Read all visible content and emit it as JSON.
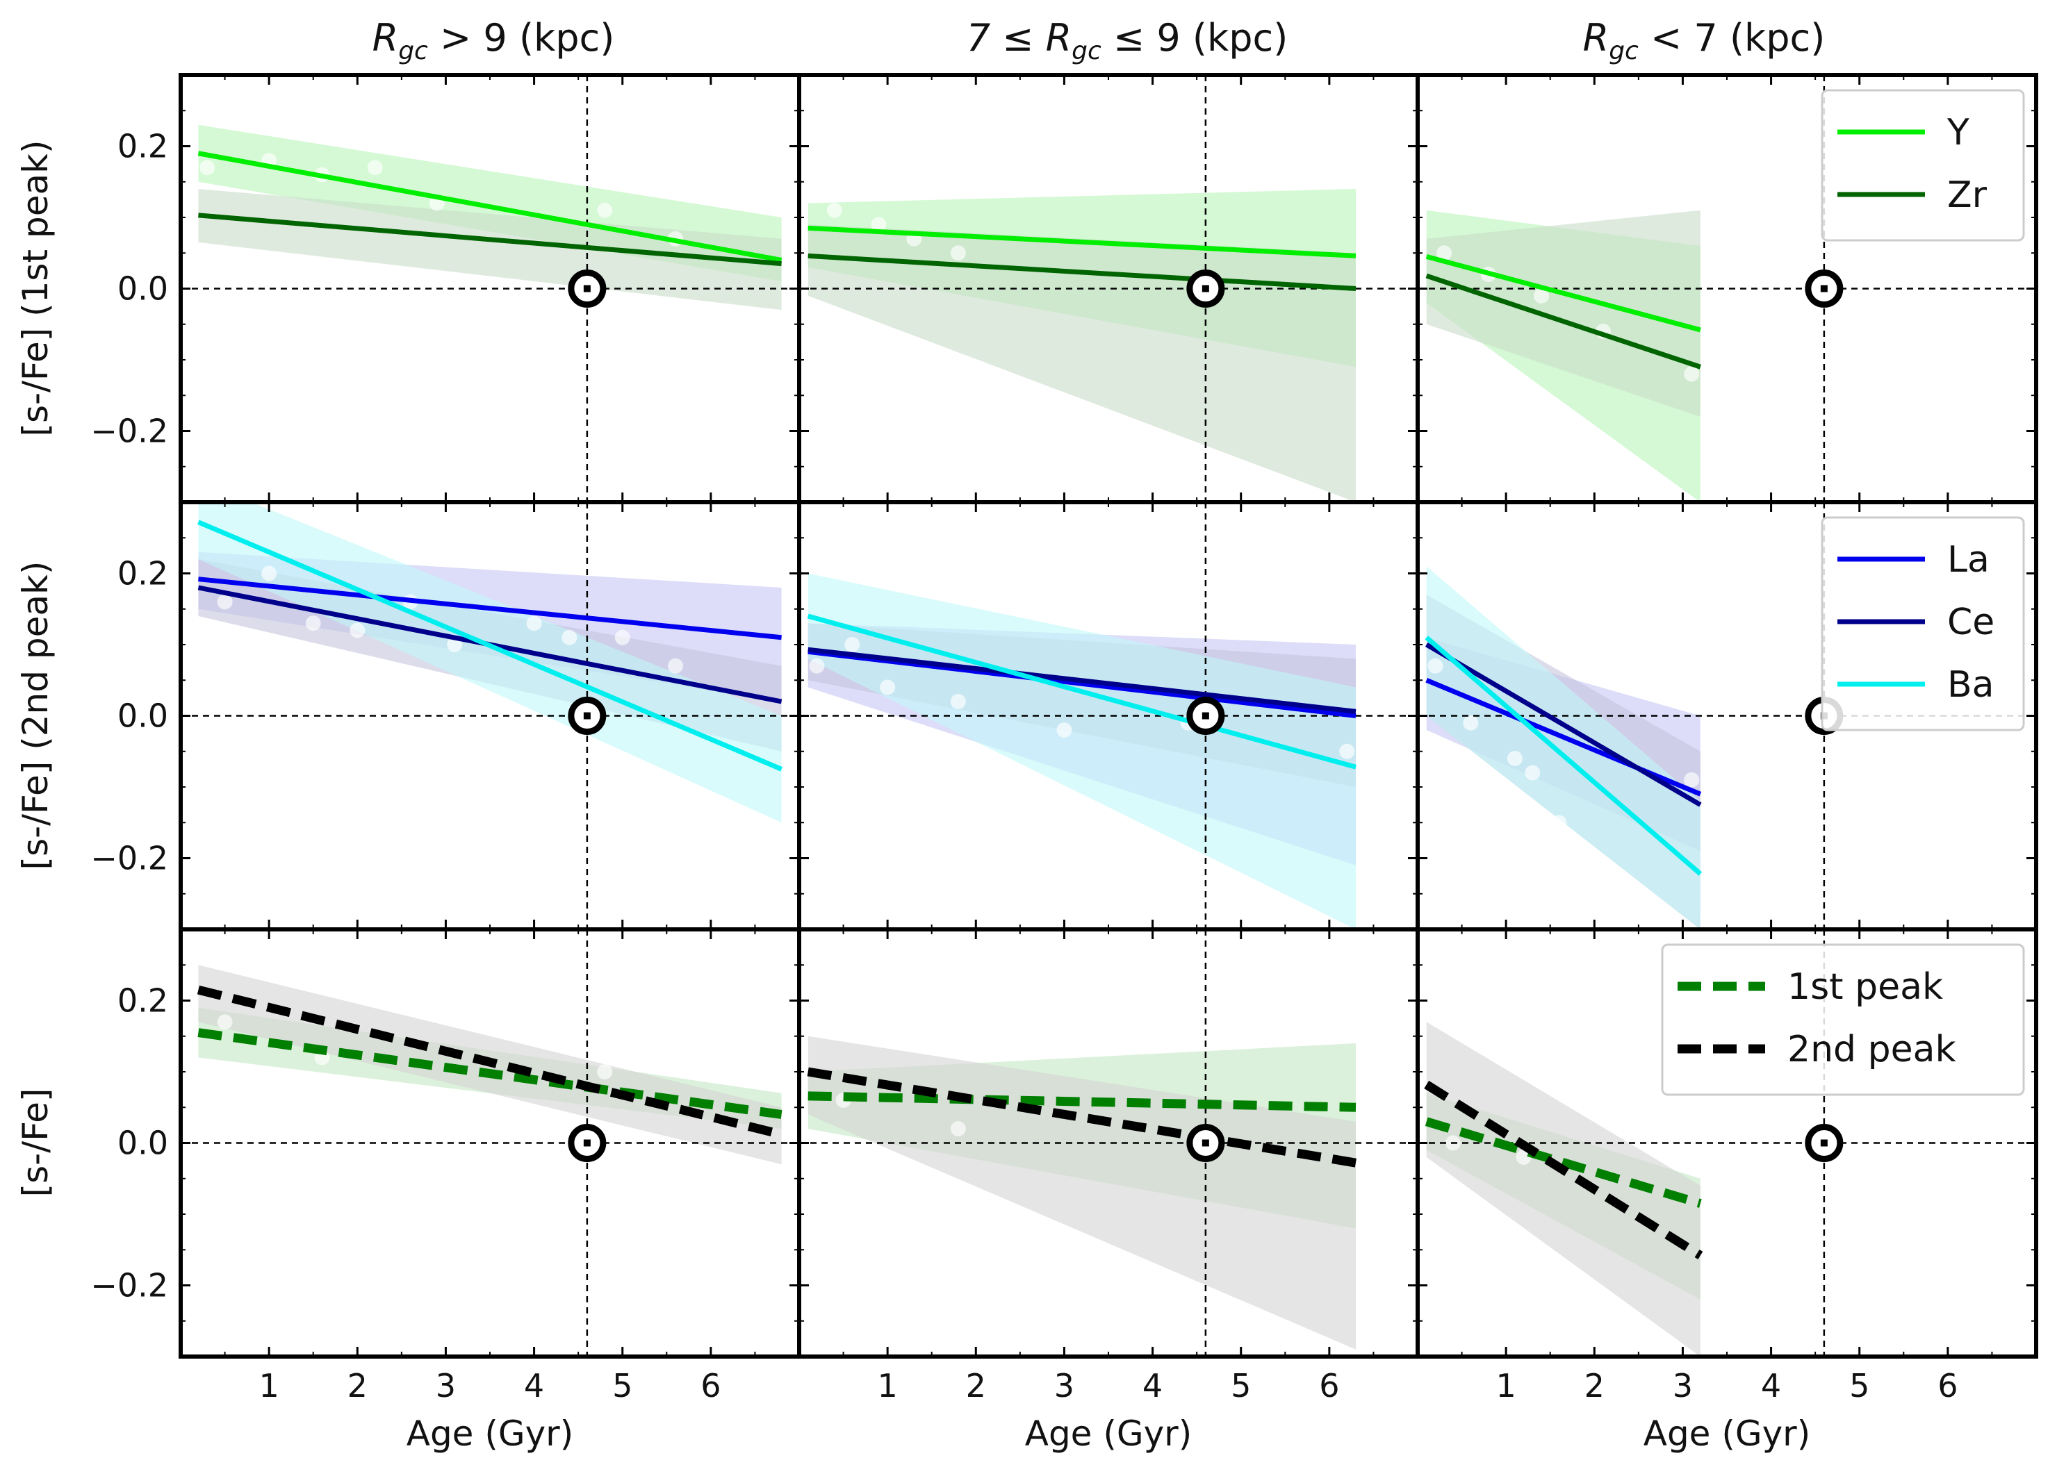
{
  "chart_data": {
    "type": "line",
    "column_titles": [
      {
        "pre": "R",
        "sub": "gc",
        "post": " > 9 (kpc)"
      },
      {
        "pre": "7 ≤ R",
        "sub": "gc",
        "post": " ≤ 9 (kpc)"
      },
      {
        "pre": "R",
        "sub": "gc",
        "post": " < 7 (kpc)"
      }
    ],
    "row_ylabels": [
      "[s-/Fe] (1st peak)",
      "[s-/Fe] (2nd peak)",
      "[s-/Fe]"
    ],
    "xlabel": "Age (Gyr)",
    "xlim": [
      0,
      7
    ],
    "ylim": [
      -0.3,
      0.3
    ],
    "xticks": [
      1,
      2,
      3,
      4,
      5,
      6
    ],
    "yticks": [
      0.2,
      0.0,
      -0.2
    ],
    "ytick_labels": [
      "0.2",
      "0.0",
      "−0.2"
    ],
    "sun_age": 4.6,
    "sun_value": 0.0,
    "rows": [
      {
        "legend": [
          {
            "label": "Y",
            "color": "#00ee00",
            "style": "solid"
          },
          {
            "label": "Zr",
            "color": "#006400",
            "style": "solid"
          }
        ],
        "panels": [
          {
            "series": [
              {
                "name": "Y",
                "color": "#00ee00",
                "band": "#b8f5b8",
                "x": [
                  0.2,
                  6.8
                ],
                "y": [
                  0.19,
                  0.04
                ],
                "band_lo": [
                  0.15,
                  0.01
                ],
                "band_hi": [
                  0.23,
                  0.1
                ]
              },
              {
                "name": "Zr",
                "color": "#006400",
                "band": "#c9dcc9",
                "x": [
                  0.2,
                  6.8
                ],
                "y": [
                  0.103,
                  0.035
                ],
                "band_lo": [
                  0.065,
                  -0.03
                ],
                "band_hi": [
                  0.14,
                  0.07
                ]
              }
            ],
            "points": [
              [
                0.3,
                0.17
              ],
              [
                1.0,
                0.18
              ],
              [
                1.6,
                0.16
              ],
              [
                2.2,
                0.17
              ],
              [
                2.9,
                0.12
              ],
              [
                4.8,
                0.11
              ],
              [
                5.6,
                0.07
              ]
            ]
          },
          {
            "series": [
              {
                "name": "Y",
                "color": "#00ee00",
                "band": "#b8f5b8",
                "x": [
                  0.1,
                  6.3
                ],
                "y": [
                  0.085,
                  0.046
                ],
                "band_lo": [
                  0.03,
                  -0.11
                ],
                "band_hi": [
                  0.12,
                  0.14
                ]
              },
              {
                "name": "Zr",
                "color": "#006400",
                "band": "#c9dcc9",
                "x": [
                  0.1,
                  6.3
                ],
                "y": [
                  0.046,
                  0.0
                ],
                "band_lo": [
                  -0.01,
                  -0.3
                ],
                "band_hi": [
                  0.09,
                  0.05
                ]
              }
            ],
            "points": [
              [
                0.4,
                0.11
              ],
              [
                0.9,
                0.09
              ],
              [
                1.3,
                0.07
              ],
              [
                1.8,
                0.05
              ]
            ]
          },
          {
            "series": [
              {
                "name": "Y",
                "color": "#00ee00",
                "band": "#b8f5b8",
                "x": [
                  0.1,
                  3.2
                ],
                "y": [
                  0.045,
                  -0.058
                ],
                "band_lo": [
                  -0.02,
                  -0.3
                ],
                "band_hi": [
                  0.11,
                  0.06
                ]
              },
              {
                "name": "Zr",
                "color": "#006400",
                "band": "#c9dcc9",
                "x": [
                  0.1,
                  3.2
                ],
                "y": [
                  0.018,
                  -0.11
                ],
                "band_lo": [
                  -0.05,
                  -0.18
                ],
                "band_hi": [
                  0.07,
                  0.11
                ]
              }
            ],
            "points": [
              [
                0.3,
                0.05
              ],
              [
                0.8,
                0.02
              ],
              [
                1.4,
                -0.01
              ],
              [
                2.1,
                -0.06
              ],
              [
                3.1,
                -0.12
              ]
            ]
          }
        ]
      },
      {
        "legend": [
          {
            "label": "La",
            "color": "#0000ee",
            "style": "solid"
          },
          {
            "label": "Ce",
            "color": "#00008b",
            "style": "solid"
          },
          {
            "label": "Ba",
            "color": "#00eeee",
            "style": "solid"
          }
        ],
        "panels": [
          {
            "series": [
              {
                "name": "La",
                "color": "#0000ee",
                "band": "#c7c7f5",
                "x": [
                  0.2,
                  6.8
                ],
                "y": [
                  0.192,
                  0.11
                ],
                "band_lo": [
                  0.15,
                  0.02
                ],
                "band_hi": [
                  0.23,
                  0.18
                ]
              },
              {
                "name": "Ce",
                "color": "#00008b",
                "band": "#c4c4de",
                "x": [
                  0.2,
                  6.8
                ],
                "y": [
                  0.18,
                  0.02
                ],
                "band_lo": [
                  0.14,
                  -0.05
                ],
                "band_hi": [
                  0.22,
                  0.07
                ]
              },
              {
                "name": "Ba",
                "color": "#00eeee",
                "band": "#c2f8f8",
                "x": [
                  0.2,
                  6.8
                ],
                "y": [
                  0.272,
                  -0.075
                ],
                "band_lo": [
                  0.22,
                  -0.15
                ],
                "band_hi": [
                  0.33,
                  0.0
                ]
              }
            ],
            "points": [
              [
                0.5,
                0.16
              ],
              [
                1.0,
                0.2
              ],
              [
                1.5,
                0.13
              ],
              [
                2.0,
                0.12
              ],
              [
                2.6,
                0.16
              ],
              [
                3.1,
                0.1
              ],
              [
                4.0,
                0.13
              ],
              [
                4.4,
                0.11
              ],
              [
                5.0,
                0.11
              ],
              [
                5.6,
                0.07
              ]
            ]
          },
          {
            "series": [
              {
                "name": "La",
                "color": "#0000ee",
                "band": "#c7c7f5",
                "x": [
                  0.1,
                  6.3
                ],
                "y": [
                  0.09,
                  0.0
                ],
                "band_lo": [
                  0.04,
                  -0.21
                ],
                "band_hi": [
                  0.13,
                  0.1
                ]
              },
              {
                "name": "Ce",
                "color": "#00008b",
                "band": "#c4c4de",
                "x": [
                  0.1,
                  6.3
                ],
                "y": [
                  0.093,
                  0.006
                ],
                "band_lo": [
                  0.05,
                  -0.1
                ],
                "band_hi": [
                  0.13,
                  0.08
                ]
              },
              {
                "name": "Ba",
                "color": "#00eeee",
                "band": "#c2f8f8",
                "x": [
                  0.1,
                  6.3
                ],
                "y": [
                  0.14,
                  -0.072
                ],
                "band_lo": [
                  0.08,
                  -0.3
                ],
                "band_hi": [
                  0.2,
                  0.04
                ]
              }
            ],
            "points": [
              [
                0.2,
                0.07
              ],
              [
                0.6,
                0.1
              ],
              [
                1.0,
                0.04
              ],
              [
                1.8,
                0.02
              ],
              [
                3.0,
                -0.02
              ],
              [
                4.4,
                -0.01
              ],
              [
                6.2,
                -0.05
              ]
            ]
          },
          {
            "series": [
              {
                "name": "La",
                "color": "#0000ee",
                "band": "#c7c7f5",
                "x": [
                  0.1,
                  3.2
                ],
                "y": [
                  0.05,
                  -0.11
                ],
                "band_lo": [
                  -0.02,
                  -0.19
                ],
                "band_hi": [
                  0.11,
                  0.0
                ]
              },
              {
                "name": "Ce",
                "color": "#00008b",
                "band": "#c4c4de",
                "x": [
                  0.1,
                  3.2
                ],
                "y": [
                  0.1,
                  -0.125
                ],
                "band_lo": [
                  0.0,
                  -0.3
                ],
                "band_hi": [
                  0.17,
                  -0.05
                ]
              },
              {
                "name": "Ba",
                "color": "#00eeee",
                "band": "#c2f8f8",
                "x": [
                  0.1,
                  3.2
                ],
                "y": [
                  0.11,
                  -0.222
                ],
                "band_lo": [
                  0.0,
                  -0.3
                ],
                "band_hi": [
                  0.21,
                  -0.12
                ]
              }
            ],
            "points": [
              [
                0.2,
                0.07
              ],
              [
                0.6,
                -0.01
              ],
              [
                1.1,
                -0.06
              ],
              [
                1.3,
                -0.08
              ],
              [
                1.6,
                -0.15
              ],
              [
                3.1,
                -0.09
              ]
            ]
          }
        ]
      },
      {
        "legend": [
          {
            "label": "1st peak",
            "color": "#007f00",
            "style": "dashed"
          },
          {
            "label": "2nd peak",
            "color": "#000000",
            "style": "dashed"
          }
        ],
        "panels": [
          {
            "series": [
              {
                "name": "1st peak",
                "color": "#007f00",
                "band": "#c3e8c3",
                "x": [
                  0.2,
                  6.8
                ],
                "y": [
                  0.155,
                  0.04
                ],
                "band_lo": [
                  0.12,
                  0.02
                ],
                "band_hi": [
                  0.19,
                  0.07
                ]
              },
              {
                "name": "2nd peak",
                "color": "#000000",
                "band": "#d3d3d3",
                "x": [
                  0.2,
                  6.8
                ],
                "y": [
                  0.215,
                  0.012
                ],
                "band_lo": [
                  0.17,
                  -0.03
                ],
                "band_hi": [
                  0.25,
                  0.05
                ]
              }
            ],
            "points": [
              [
                0.5,
                0.17
              ],
              [
                1.6,
                0.12
              ],
              [
                4.8,
                0.1
              ]
            ]
          },
          {
            "series": [
              {
                "name": "1st peak",
                "color": "#007f00",
                "band": "#c3e8c3",
                "x": [
                  0.1,
                  6.3
                ],
                "y": [
                  0.066,
                  0.05
                ],
                "band_lo": [
                  0.02,
                  -0.12
                ],
                "band_hi": [
                  0.1,
                  0.14
                ]
              },
              {
                "name": "2nd peak",
                "color": "#000000",
                "band": "#d3d3d3",
                "x": [
                  0.1,
                  6.3
                ],
                "y": [
                  0.1,
                  -0.028
                ],
                "band_lo": [
                  0.04,
                  -0.29
                ],
                "band_hi": [
                  0.15,
                  0.03
                ]
              }
            ],
            "points": [
              [
                0.5,
                0.06
              ],
              [
                1.8,
                0.02
              ]
            ]
          },
          {
            "series": [
              {
                "name": "1st peak",
                "color": "#007f00",
                "band": "#c3e8c3",
                "x": [
                  0.1,
                  3.2
                ],
                "y": [
                  0.03,
                  -0.085
                ],
                "band_lo": [
                  -0.01,
                  -0.22
                ],
                "band_hi": [
                  0.07,
                  -0.05
                ]
              },
              {
                "name": "2nd peak",
                "color": "#000000",
                "band": "#d3d3d3",
                "x": [
                  0.1,
                  3.2
                ],
                "y": [
                  0.082,
                  -0.158
                ],
                "band_lo": [
                  -0.02,
                  -0.3
                ],
                "band_hi": [
                  0.17,
                  -0.06
                ]
              }
            ],
            "points": [
              [
                0.4,
                0.0
              ],
              [
                1.2,
                -0.02
              ]
            ]
          }
        ]
      }
    ]
  }
}
